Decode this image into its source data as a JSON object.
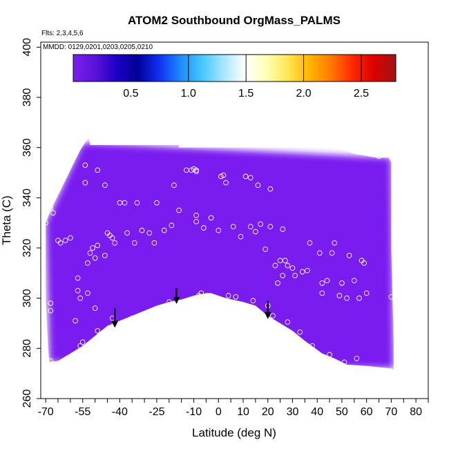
{
  "chart_data": {
    "type": "heatmap",
    "title": "ATOM2 Southbound OrgMass_PALMS",
    "annotations": [
      "Flts: 2,3,4,5,6",
      "MMDD: 0129,0201,0203,0205,0210"
    ],
    "xlabel": "Latitude (deg N)",
    "ylabel": "Theta (C)",
    "xlim": [
      -72,
      85
    ],
    "ylim": [
      260,
      402
    ],
    "x_ticks": [
      -70,
      -65,
      -60,
      -55,
      -50,
      -45,
      -40,
      -35,
      -30,
      -25,
      -20,
      -15,
      -10,
      -5,
      0,
      5,
      10,
      15,
      20,
      25,
      30,
      35,
      40,
      45,
      50,
      55,
      60,
      65,
      70,
      75,
      80,
      85
    ],
    "x_tick_labels": [
      "-70",
      "-55",
      "-40",
      "-25",
      "-10",
      "0",
      "10",
      "20",
      "30",
      "40",
      "50",
      "60",
      "70",
      "80"
    ],
    "x_tick_label_values": [
      -70,
      -55,
      -40,
      -25,
      -10,
      0,
      10,
      20,
      30,
      40,
      50,
      60,
      70,
      80
    ],
    "y_ticks": [
      260,
      280,
      300,
      320,
      340,
      360,
      380,
      400
    ],
    "y_tick_labels": [
      "260",
      "280",
      "300",
      "320",
      "340",
      "360",
      "380",
      "400"
    ],
    "colorbar": {
      "range": [
        0,
        2.8
      ],
      "ticks": [
        0.5,
        1.0,
        1.5,
        2.0,
        2.5
      ],
      "tick_labels": [
        "0.5",
        "1.0",
        "1.5",
        "2.0",
        "2.5"
      ],
      "colors": [
        "#7a1ef0",
        "#5a14d8",
        "#1f00c8",
        "#000096",
        "#1030f0",
        "#1c8cff",
        "#46c8ff",
        "#a8e6ff",
        "#ffffff",
        "#ffffb4",
        "#ffe650",
        "#ffb400",
        "#ff7800",
        "#ff2800",
        "#dc0000",
        "#a01414"
      ]
    },
    "domain_boundary": {
      "top": [
        [
          -70,
          330
        ],
        [
          -68,
          335
        ],
        [
          -66,
          339
        ],
        [
          -64,
          343
        ],
        [
          -62,
          347
        ],
        [
          -60,
          351
        ],
        [
          -58,
          355
        ],
        [
          -56,
          359
        ],
        [
          -54,
          362
        ],
        [
          -52.5,
          364
        ],
        [
          -52,
          361
        ],
        [
          -16,
          361
        ],
        [
          -16,
          360
        ],
        [
          47,
          360
        ],
        [
          55,
          357.5
        ],
        [
          64,
          356
        ],
        [
          69,
          356
        ],
        [
          70,
          354
        ]
      ],
      "right": [
        [
          70,
          354
        ],
        [
          70,
          320
        ],
        [
          70.5,
          300
        ],
        [
          71,
          282
        ],
        [
          71,
          271.5
        ],
        [
          70,
          272
        ]
      ],
      "bottom": [
        [
          70,
          272
        ],
        [
          60,
          273
        ],
        [
          52,
          273.5
        ],
        [
          47,
          276
        ],
        [
          42,
          278
        ],
        [
          35,
          283
        ],
        [
          30,
          287
        ],
        [
          25,
          290
        ],
        [
          20,
          293
        ],
        [
          15,
          297
        ],
        [
          10,
          298.5
        ],
        [
          3,
          300
        ],
        [
          0,
          301
        ],
        [
          -3,
          302
        ],
        [
          -5,
          302
        ],
        [
          -10,
          301
        ],
        [
          -15,
          299.5
        ],
        [
          -20,
          298.5
        ],
        [
          -25,
          297
        ],
        [
          -30,
          295
        ],
        [
          -35,
          293
        ],
        [
          -40,
          291
        ],
        [
          -45,
          289
        ],
        [
          -50,
          285
        ],
        [
          -55,
          281
        ],
        [
          -60,
          278
        ],
        [
          -65,
          275
        ],
        [
          -68.5,
          274.5
        ],
        [
          -69,
          280
        ],
        [
          -70,
          300
        ],
        [
          -70,
          330
        ]
      ]
    },
    "regions": [
      {
        "value": 0.12,
        "polygon": [
          [
            -70,
            330
          ],
          [
            -55,
            362
          ],
          [
            70,
            356
          ],
          [
            71,
            272
          ],
          [
            -68.5,
            274.5
          ]
        ]
      },
      {
        "value": 0.03,
        "polygon": [
          [
            -62,
            318
          ],
          [
            -50,
            325
          ],
          [
            -40,
            330
          ],
          [
            -36,
            334
          ],
          [
            -38,
            322
          ],
          [
            -45,
            315
          ],
          [
            -55,
            312
          ],
          [
            -62,
            314
          ]
        ]
      },
      {
        "value": 0.03,
        "polygon": [
          [
            -35,
            337
          ],
          [
            -20,
            345
          ],
          [
            -10,
            350
          ],
          [
            0,
            352
          ],
          [
            5,
            348
          ],
          [
            10,
            342
          ],
          [
            5,
            335
          ],
          [
            -10,
            333
          ],
          [
            -25,
            333
          ]
        ]
      },
      {
        "value": 0.07,
        "polygon": [
          [
            -68,
            300
          ],
          [
            -62,
            305
          ],
          [
            -52,
            308
          ],
          [
            -40,
            306
          ],
          [
            -28,
            302
          ],
          [
            -20,
            300
          ],
          [
            -25,
            297
          ],
          [
            -40,
            291
          ],
          [
            -55,
            281
          ],
          [
            -68,
            276
          ]
        ]
      },
      {
        "value": 0.11,
        "polygon": [
          [
            -62,
            298
          ],
          [
            -52,
            302
          ],
          [
            -44,
            302
          ],
          [
            -36,
            299
          ],
          [
            -28,
            297
          ],
          [
            -38,
            292
          ],
          [
            -48,
            288
          ],
          [
            -58,
            290
          ]
        ]
      },
      {
        "value": 0.15,
        "polygon": [
          [
            -55,
            296
          ],
          [
            -48,
            298
          ],
          [
            -40,
            297
          ],
          [
            -32,
            296
          ],
          [
            -42,
            292
          ],
          [
            -50,
            291
          ]
        ]
      },
      {
        "value": 0.08,
        "polygon": [
          [
            -30,
            304
          ],
          [
            -20,
            304
          ],
          [
            -12,
            302
          ],
          [
            -16,
            299.5
          ],
          [
            -22,
            298.5
          ],
          [
            -28,
            297
          ]
        ]
      },
      {
        "value": 0.09,
        "polygon": [
          [
            10,
            302
          ],
          [
            18,
            308
          ],
          [
            22,
            318
          ],
          [
            26,
            322
          ],
          [
            30,
            316
          ],
          [
            38,
            310
          ],
          [
            35,
            302
          ],
          [
            25,
            297
          ],
          [
            15,
            298
          ]
        ]
      },
      {
        "value": 0.16,
        "polygon": [
          [
            18,
            306
          ],
          [
            22,
            312
          ],
          [
            26,
            316
          ],
          [
            30,
            312
          ],
          [
            28,
            304
          ],
          [
            22,
            300
          ],
          [
            18,
            301
          ]
        ]
      },
      {
        "value": 0.13,
        "polygon": [
          [
            38,
            306
          ],
          [
            46,
            308
          ],
          [
            50,
            306
          ],
          [
            47,
            300
          ],
          [
            42,
            302
          ]
        ]
      },
      {
        "value": 0.08,
        "polygon": [
          [
            47,
            302
          ],
          [
            56,
            312
          ],
          [
            64,
            304
          ],
          [
            70,
            300
          ],
          [
            70,
            273
          ],
          [
            55,
            273
          ],
          [
            47,
            276
          ]
        ]
      },
      {
        "value": 0.14,
        "polygon": [
          [
            54,
            300
          ],
          [
            60,
            305
          ],
          [
            66,
            298
          ],
          [
            66,
            278
          ],
          [
            58,
            274
          ],
          [
            52,
            276
          ],
          [
            50,
            290
          ]
        ]
      },
      {
        "value": 0.06,
        "polygon": [
          [
            30,
            287
          ],
          [
            42,
            292
          ],
          [
            47,
            288
          ],
          [
            44,
            279
          ],
          [
            35,
            283
          ]
        ]
      }
    ],
    "points": [
      [
        -70,
        330
      ],
      [
        -68,
        336
      ],
      [
        -68,
        298
      ],
      [
        -68,
        295
      ],
      [
        -68,
        275
      ],
      [
        -67,
        334
      ],
      [
        -65,
        323
      ],
      [
        -64,
        322
      ],
      [
        -62,
        323
      ],
      [
        -60,
        324
      ],
      [
        -58,
        291
      ],
      [
        -57,
        308
      ],
      [
        -57,
        303
      ],
      [
        -56,
        300
      ],
      [
        -56,
        281
      ],
      [
        -55,
        282.5
      ],
      [
        -54,
        353
      ],
      [
        -54,
        346
      ],
      [
        -53,
        302
      ],
      [
        -53,
        314
      ],
      [
        -52,
        318
      ],
      [
        -51,
        320
      ],
      [
        -50,
        296
      ],
      [
        -50,
        316
      ],
      [
        -49,
        287
      ],
      [
        -49,
        321
      ],
      [
        -49,
        351
      ],
      [
        -46,
        317
      ],
      [
        -46,
        345
      ],
      [
        -45,
        326
      ],
      [
        -44,
        325
      ],
      [
        -43,
        324
      ],
      [
        -43,
        292
      ],
      [
        -42,
        322
      ],
      [
        -40,
        338
      ],
      [
        -38,
        338
      ],
      [
        -37,
        326
      ],
      [
        -35,
        292
      ],
      [
        -34,
        322
      ],
      [
        -33,
        338
      ],
      [
        -31,
        327
      ],
      [
        -28,
        326
      ],
      [
        -27,
        295
      ],
      [
        -26,
        322
      ],
      [
        -25,
        338
      ],
      [
        -22,
        327
      ],
      [
        -20,
        298.5
      ],
      [
        -19,
        329
      ],
      [
        -18,
        345
      ],
      [
        -16,
        335
      ],
      [
        -13,
        351
      ],
      [
        -11,
        351
      ],
      [
        -10,
        351.5
      ],
      [
        -9,
        351
      ],
      [
        -9,
        350.5
      ],
      [
        -9,
        333
      ],
      [
        -9,
        330.5
      ],
      [
        -8,
        301
      ],
      [
        -7,
        302
      ],
      [
        -6,
        328
      ],
      [
        -3,
        332
      ],
      [
        0,
        327
      ],
      [
        1,
        348.5
      ],
      [
        2,
        349
      ],
      [
        3,
        346
      ],
      [
        4,
        301
      ],
      [
        6,
        328.5
      ],
      [
        7,
        300.5
      ],
      [
        9,
        324.5
      ],
      [
        11,
        348.5
      ],
      [
        13,
        348
      ],
      [
        13,
        328.5
      ],
      [
        14,
        299
      ],
      [
        15,
        326.5
      ],
      [
        16,
        345
      ],
      [
        17,
        329.5
      ],
      [
        19,
        319.5
      ],
      [
        20,
        297
      ],
      [
        21,
        343.5
      ],
      [
        21,
        328.5
      ],
      [
        22,
        293
      ],
      [
        23,
        313
      ],
      [
        24,
        306
      ],
      [
        25,
        315
      ],
      [
        26,
        309
      ],
      [
        26,
        327.5
      ],
      [
        27,
        315
      ],
      [
        28,
        290.5
      ],
      [
        28,
        313
      ],
      [
        30,
        312
      ],
      [
        31,
        309
      ],
      [
        33,
        286.5
      ],
      [
        34,
        310.5
      ],
      [
        36,
        311
      ],
      [
        37,
        322
      ],
      [
        38,
        281
      ],
      [
        41,
        318
      ],
      [
        42,
        306
      ],
      [
        42,
        302
      ],
      [
        44,
        307
      ],
      [
        45,
        277.5
      ],
      [
        46,
        318
      ],
      [
        47,
        322
      ],
      [
        49,
        301
      ],
      [
        50,
        306
      ],
      [
        51,
        274.5
      ],
      [
        52,
        300
      ],
      [
        53,
        317
      ],
      [
        55,
        307
      ],
      [
        56,
        276
      ],
      [
        57,
        300
      ],
      [
        58,
        315
      ],
      [
        59,
        314
      ],
      [
        60,
        302
      ],
      [
        65,
        356.5
      ],
      [
        70,
        300.5
      ]
    ],
    "arrows": [
      {
        "x": -42,
        "y_top": 296,
        "y_tip": 288.5
      },
      {
        "x": -17,
        "y_top": 304,
        "y_tip": 298
      },
      {
        "x": 20,
        "y_top": 299,
        "y_tip": 292
      }
    ]
  }
}
